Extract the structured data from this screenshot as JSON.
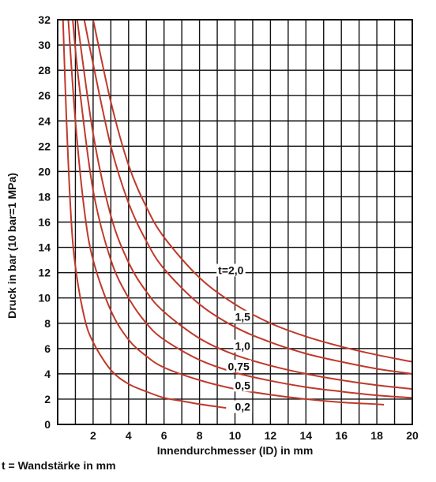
{
  "chart_data": {
    "type": "line",
    "title": "",
    "xlabel": "Innendurchmesser (ID) in mm",
    "ylabel": "Druck in bar  (10 bar=1 MPa)",
    "xlim": [
      0,
      20
    ],
    "ylim": [
      0,
      32
    ],
    "xticks": [
      2,
      4,
      6,
      8,
      10,
      12,
      14,
      16,
      18,
      20
    ],
    "yticks": [
      0,
      2,
      4,
      6,
      8,
      10,
      12,
      14,
      16,
      18,
      20,
      22,
      24,
      26,
      28,
      30,
      32
    ],
    "x_minor_step": 1,
    "grid": true,
    "line_color": "#c0392b",
    "series": [
      {
        "name": "0,2",
        "points": [
          [
            0.3,
            32
          ],
          [
            0.5,
            24
          ],
          [
            0.75,
            16.5
          ],
          [
            1,
            12.5
          ],
          [
            1.5,
            8.5
          ],
          [
            2,
            6.5
          ],
          [
            3,
            4.3
          ],
          [
            4,
            3.2
          ],
          [
            5,
            2.6
          ],
          [
            6,
            2.1
          ],
          [
            7,
            1.85
          ],
          [
            8,
            1.6
          ],
          [
            9,
            1.4
          ],
          [
            9.5,
            1.3
          ]
        ]
      },
      {
        "name": "0,5",
        "points": [
          [
            0.6,
            32
          ],
          [
            1,
            24
          ],
          [
            1.5,
            17
          ],
          [
            2,
            13
          ],
          [
            3,
            9
          ],
          [
            4,
            6.7
          ],
          [
            5,
            5.4
          ],
          [
            6,
            4.5
          ],
          [
            8,
            3.5
          ],
          [
            10,
            2.8
          ],
          [
            12,
            2.35
          ],
          [
            14,
            2.0
          ],
          [
            16,
            1.75
          ],
          [
            18,
            1.6
          ],
          [
            18.4,
            1.55
          ]
        ]
      },
      {
        "name": "0,75",
        "points": [
          [
            0.85,
            32
          ],
          [
            1.2,
            27
          ],
          [
            2,
            18.5
          ],
          [
            3,
            13
          ],
          [
            4,
            10
          ],
          [
            5,
            8
          ],
          [
            6,
            6.7
          ],
          [
            8,
            5.1
          ],
          [
            10,
            4.1
          ],
          [
            12,
            3.45
          ],
          [
            14,
            2.95
          ],
          [
            16,
            2.6
          ],
          [
            18,
            2.3
          ],
          [
            20,
            2.1
          ]
        ]
      },
      {
        "name": "1,0",
        "points": [
          [
            1.1,
            32
          ],
          [
            2,
            23
          ],
          [
            3,
            16.5
          ],
          [
            4,
            12.8
          ],
          [
            5,
            10.5
          ],
          [
            6,
            8.9
          ],
          [
            8,
            6.8
          ],
          [
            10,
            5.5
          ],
          [
            12,
            4.65
          ],
          [
            14,
            4.0
          ],
          [
            16,
            3.5
          ],
          [
            18,
            3.1
          ],
          [
            20,
            2.8
          ]
        ]
      },
      {
        "name": "1,5",
        "points": [
          [
            1.5,
            32
          ],
          [
            2,
            28.5
          ],
          [
            3,
            22
          ],
          [
            4,
            17.5
          ],
          [
            5,
            14.5
          ],
          [
            6,
            12.3
          ],
          [
            8,
            9.5
          ],
          [
            10,
            7.7
          ],
          [
            12,
            6.5
          ],
          [
            14,
            5.6
          ],
          [
            16,
            4.95
          ],
          [
            18,
            4.4
          ],
          [
            20,
            4.0
          ]
        ]
      },
      {
        "name": "t=2,0",
        "points": [
          [
            2.0,
            32
          ],
          [
            3,
            25.5
          ],
          [
            4,
            20.5
          ],
          [
            5,
            17.2
          ],
          [
            6,
            14.8
          ],
          [
            8,
            11.6
          ],
          [
            10,
            9.5
          ],
          [
            12,
            8.0
          ],
          [
            14,
            6.95
          ],
          [
            16,
            6.15
          ],
          [
            18,
            5.5
          ],
          [
            20,
            4.95
          ]
        ]
      }
    ],
    "labels": [
      {
        "text": "t=2,0",
        "x": 9.05,
        "y": 12.2
      },
      {
        "text": "1,5",
        "x": 10.0,
        "y": 8.5
      },
      {
        "text": "1,0",
        "x": 10.0,
        "y": 6.2
      },
      {
        "text": "0,75",
        "x": 9.6,
        "y": 4.6
      },
      {
        "text": "0,5",
        "x": 10.0,
        "y": 3.1
      },
      {
        "text": "0,2",
        "x": 10.0,
        "y": 1.4
      }
    ]
  },
  "footnote": "t = Wandstärke in mm"
}
